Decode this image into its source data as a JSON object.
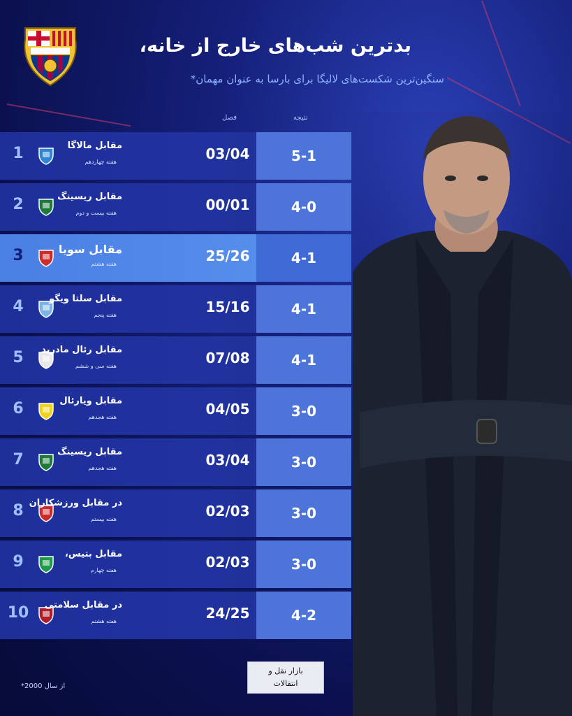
{
  "header": {
    "title": "بدترین شب‌های خارج از خانه،",
    "subtitle": "سنگین‌ترین شکست‌های لالیگا برای بارسا به عنوان مهمان*"
  },
  "columns": {
    "result": "نتیجه",
    "season": "فصل"
  },
  "rows": [
    {
      "rank": "1",
      "team": "مقابل مالاگا",
      "week": "هفته چهاردهم",
      "season": "03/04",
      "score": "5-1",
      "logo": "malaga-crest-icon",
      "color": "#2f86d4",
      "highlight": false
    },
    {
      "rank": "2",
      "team": "مقابل ریسینگ",
      "week": "هفته بیست و دوم",
      "season": "00/01",
      "score": "4-0",
      "logo": "racing-crest-icon",
      "color": "#1d7a3a",
      "highlight": false
    },
    {
      "rank": "3",
      "team": "مقابل سویا",
      "week": "هفته هشتم",
      "season": "25/26",
      "score": "4-1",
      "logo": "sevilla-crest-icon",
      "color": "#d12a2a",
      "highlight": true
    },
    {
      "rank": "4",
      "team": "مقابل سلتا ویگو",
      "week": "هفته پنجم",
      "season": "15/16",
      "score": "4-1",
      "logo": "celta-crest-icon",
      "color": "#7bb4e8",
      "highlight": false
    },
    {
      "rank": "5",
      "team": "مقابل رئال مادرید",
      "week": "هفته سی و ششم",
      "season": "07/08",
      "score": "4-1",
      "logo": "real-madrid-crest-icon",
      "color": "#e8e8e8",
      "highlight": false
    },
    {
      "rank": "6",
      "team": "مقابل ویارئال",
      "week": "هفته هجدهم",
      "season": "04/05",
      "score": "3-0",
      "logo": "villarreal-crest-icon",
      "color": "#f2d21b",
      "highlight": false
    },
    {
      "rank": "7",
      "team": "مقابل ریسینگ",
      "week": "هفته هجدهم",
      "season": "03/04",
      "score": "3-0",
      "logo": "racing-crest-icon",
      "color": "#1d7a3a",
      "highlight": false
    },
    {
      "rank": "8",
      "team": "در مقابل ورزشکاران",
      "week": "هفته بیستم",
      "season": "02/03",
      "score": "3-0",
      "logo": "atletico-crest-icon",
      "color": "#cb2b2b",
      "highlight": false
    },
    {
      "rank": "9",
      "team": "مقابل بتیس،",
      "week": "هفته چهارم",
      "season": "02/03",
      "score": "3-0",
      "logo": "betis-crest-icon",
      "color": "#1e9a4a",
      "highlight": false
    },
    {
      "rank": "10",
      "team": "در مقابل سلامتی",
      "week": "هفته هشتم",
      "season": "24/25",
      "score": "4-2",
      "logo": "osasuna-crest-icon",
      "color": "#b01d2a",
      "highlight": false
    }
  ],
  "footer": {
    "note": "از سال 2000*",
    "watermark_line1": "بازار نقل و",
    "watermark_line2": "انتقالات"
  },
  "colors": {
    "background": "#0b1150",
    "row": "#1e2f9a",
    "score": "#4d74d8",
    "highlight": "#5a93ef"
  }
}
